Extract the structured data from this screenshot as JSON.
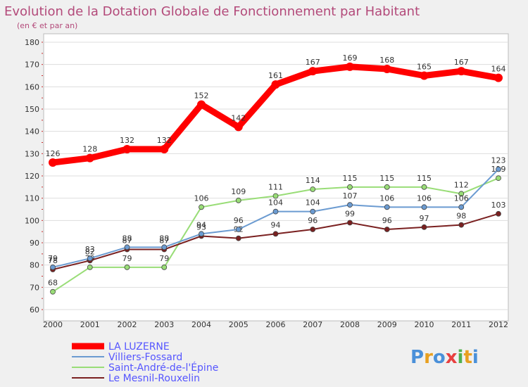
{
  "chart_data": {
    "type": "line",
    "title": "Evolution de la Dotation Globale de Fonctionnement par Habitant",
    "subtitle": "(en € et par an)",
    "xlabel": "",
    "ylabel": "",
    "ylim": [
      60,
      180
    ],
    "y_ticks": [
      60,
      70,
      80,
      90,
      100,
      110,
      120,
      130,
      140,
      150,
      160,
      170,
      180
    ],
    "categories": [
      "2000",
      "2001",
      "2002",
      "2003",
      "2004",
      "2005",
      "2006",
      "2007",
      "2008",
      "2009",
      "2010",
      "2011",
      "2012"
    ],
    "series": [
      {
        "name": "LA LUZERNE",
        "color": "#ff0000",
        "values": [
          126,
          128,
          132,
          132,
          152,
          142,
          161,
          167,
          169,
          168,
          165,
          167,
          164
        ]
      },
      {
        "name": "Villiers-Fossard",
        "color": "#6b9bd1",
        "values": [
          79,
          83,
          88,
          88,
          94,
          96,
          104,
          104,
          107,
          106,
          106,
          106,
          123
        ]
      },
      {
        "name": "Saint-André-de-l'Épine",
        "color": "#99dd77",
        "values": [
          68,
          79,
          79,
          79,
          106,
          109,
          111,
          114,
          115,
          115,
          115,
          112,
          119
        ]
      },
      {
        "name": "Le Mesnil-Rouxelin",
        "color": "#7a2020",
        "values": [
          78,
          82,
          87,
          87,
          93,
          92,
          94,
          96,
          99,
          96,
          97,
          98,
          103
        ]
      }
    ]
  },
  "legend_label_color": "#5555ff",
  "brand": {
    "letters": [
      "P",
      "r",
      "o",
      "x",
      "i",
      "t",
      "i"
    ],
    "colors": [
      "#4a90d9",
      "#e8a020",
      "#4a90d9",
      "#e84040",
      "#50b050",
      "#e8a020",
      "#4a90d9"
    ]
  }
}
